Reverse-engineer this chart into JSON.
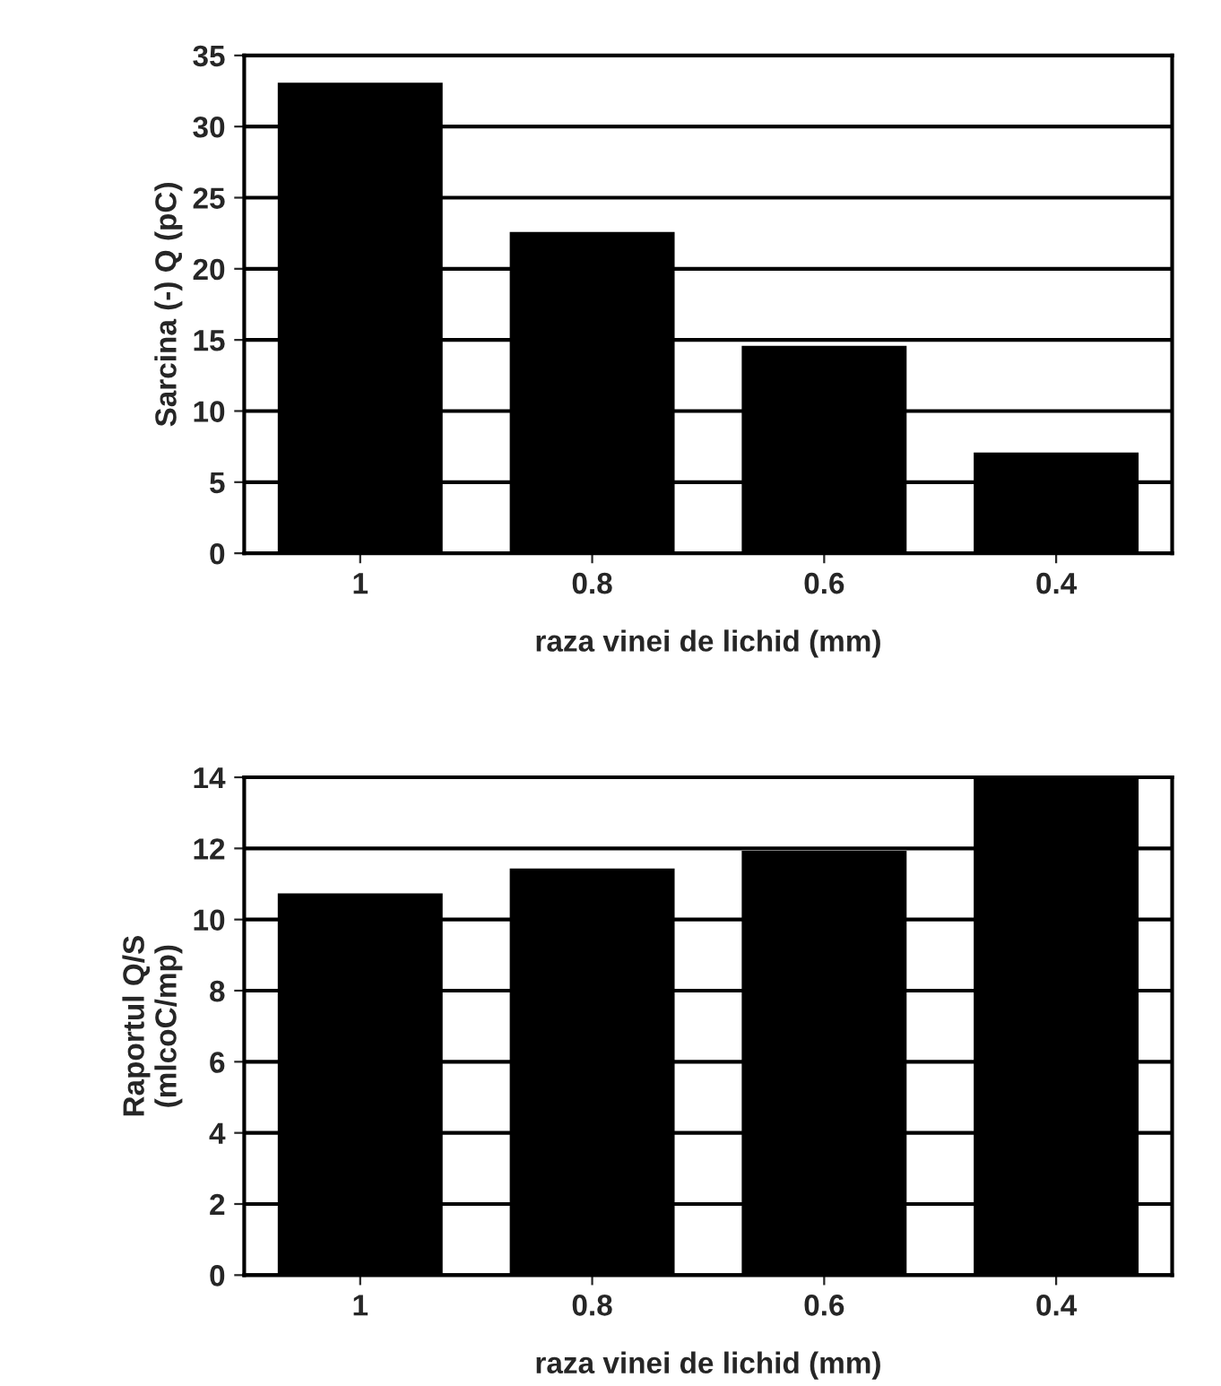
{
  "chart_data": [
    {
      "type": "bar",
      "ylabel": "Sarcina (-) Q (pC)",
      "xlabel": "raza vinei de lichid (mm)",
      "categories": [
        "1",
        "0.8",
        "0.6",
        "0.4"
      ],
      "values": [
        33,
        22.5,
        14.5,
        7
      ],
      "color": "#000000",
      "ylim": [
        0,
        35
      ],
      "yticks": [
        0,
        5,
        10,
        15,
        20,
        25,
        30,
        35
      ],
      "grid": true
    },
    {
      "type": "bar",
      "ylabel": "Raportul Q/S\n(mlcoC/mp)",
      "xlabel": "raza vinei de lichid (mm)",
      "categories": [
        "1",
        "0.8",
        "0.6",
        "0.4"
      ],
      "values": [
        10.7,
        11.4,
        11.9,
        14
      ],
      "color": "#000000",
      "ylim": [
        0,
        14
      ],
      "yticks": [
        0,
        2,
        4,
        6,
        8,
        10,
        12,
        14
      ],
      "grid": true
    }
  ]
}
